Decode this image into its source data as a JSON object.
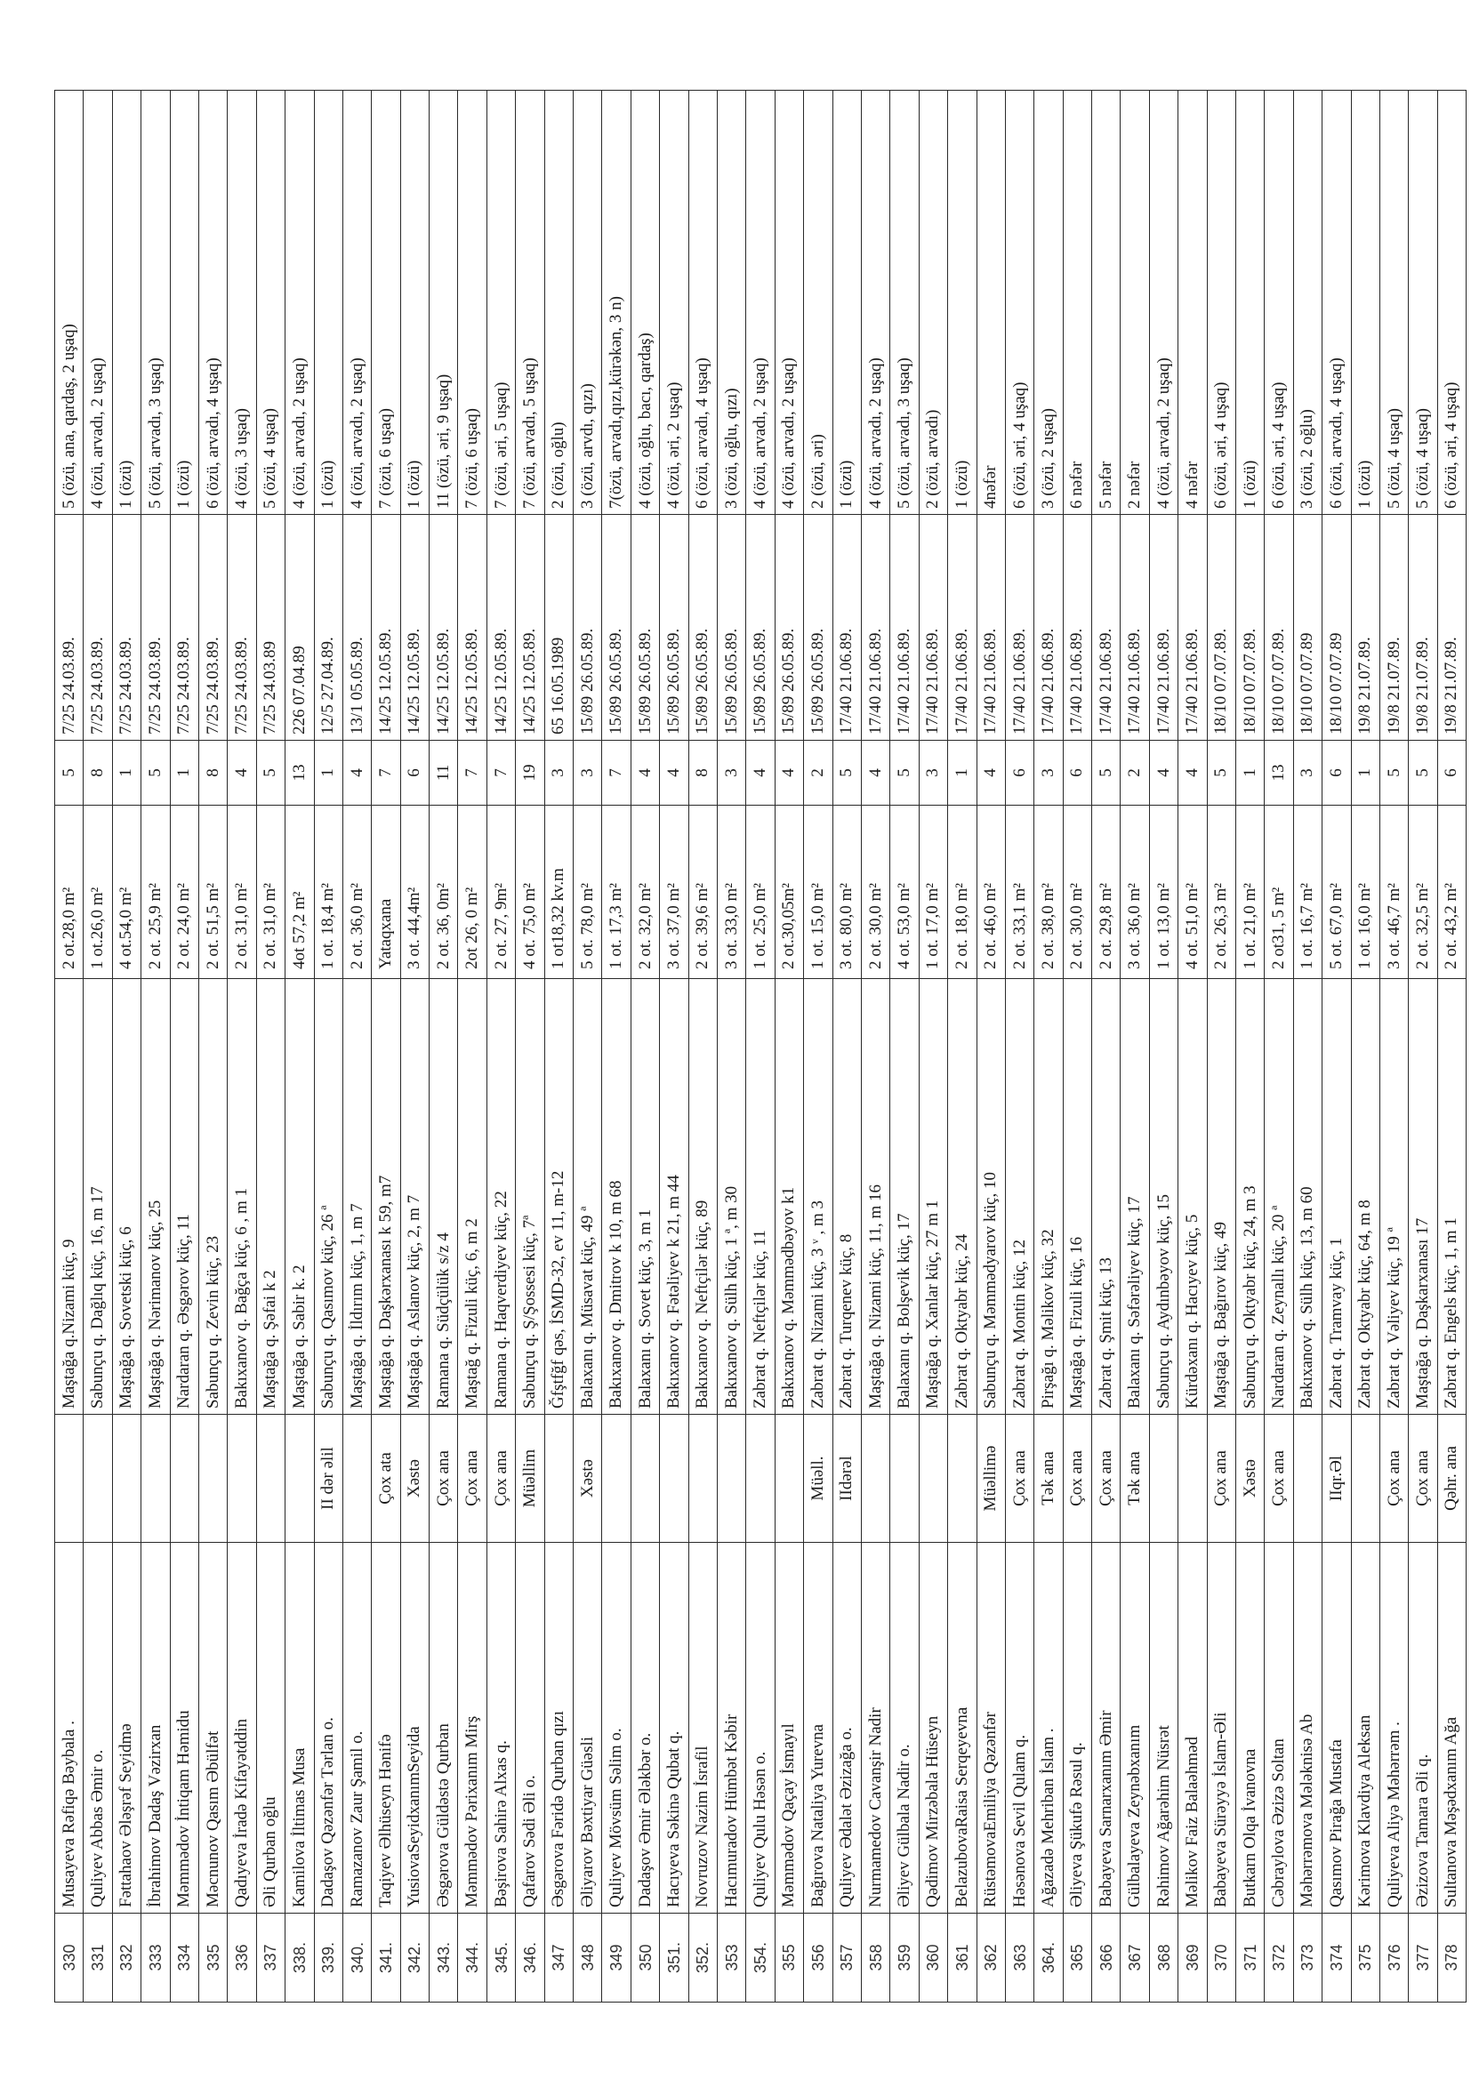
{
  "rows": [
    {
      "no": "330",
      "name": "Musayeva Rəfiqə Bəybala .",
      "status": "",
      "address": "Maştağa q.Nizami küç, 9",
      "area": "2 ot.28,0 m²",
      "count": "5",
      "decision": "7/25  24.03.89.",
      "family": "5 (özü, ana, qardaş, 2 uşaq)"
    },
    {
      "no": "331",
      "name": "Quliyev Abbas Əmir o.",
      "status": "",
      "address": "Sabunçu q. Dağlıq küç, 16, m 17",
      "area": "1 ot.26,0 m²",
      "count": "8",
      "decision": "7/25  24.03.89.",
      "family": "4 (özü, arvadı, 2 uşaq)"
    },
    {
      "no": "332",
      "name": "Fəttahaov Ələşrəf Seyidmə",
      "status": "",
      "address": "Maştağa q. Sovetski küç, 6",
      "area": "4 ot.54,0 m²",
      "count": "1",
      "decision": "7/25  24.03.89.",
      "family": "1 (özü)"
    },
    {
      "no": "333",
      "name": "İbrahimov Dadaş Vəzirxan",
      "status": "",
      "address": "Maştağa q. Nərimanov küç, 25",
      "area": "2 ot. 25,9 m²",
      "count": "5",
      "decision": "7/25  24.03.89.",
      "family": "5 (özü, arvadı, 3 uşaq)"
    },
    {
      "no": "334",
      "name": "Məmmədov İntiqam Həmidu",
      "status": "",
      "address": "Nardaran q. Əsgərov küç, 11",
      "area": "2 ot. 24,0 m²",
      "count": "1",
      "decision": "7/25  24.03.89.",
      "family": "1 (özü)"
    },
    {
      "no": "335",
      "name": "Məcnunov Qasım Əbülfət",
      "status": "",
      "address": "Sabunçu q. Zevin küç, 23",
      "area": "2 ot. 51,5 m²",
      "count": "8",
      "decision": "7/25  24.03.89.",
      "family": "6 (özü, arvadı, 4 uşaq)"
    },
    {
      "no": "336",
      "name": "Qadıyeva İradə Kifayətddin",
      "status": "",
      "address": "Bakıxanov q. Bağça küç, 6 , m 1",
      "area": "2 ot. 31,0 m²",
      "count": "4",
      "decision": "7/25  24.03.89.",
      "family": "4 (özü, 3 uşaq)"
    },
    {
      "no": "337",
      "name": "Əli Qurban oğlu",
      "status": "",
      "address": "Maştağa q. Şəfai k 2",
      "area": "2 ot. 31,0 m²",
      "count": "5",
      "decision": "7/25 24.03.89",
      "family": "5 (özü,  4 uşaq)"
    },
    {
      "no": "338.",
      "name": "Kamilova İltimas Musa",
      "status": "",
      "address": "Maştağa q. Sabir k. 2",
      "area": "4ot 57,2 m²",
      "count": "13",
      "decision": "   226 07.04.89",
      "family": "4 (özü, arvadı, 2 uşaq)"
    },
    {
      "no": "339.",
      "name": "Dadaşov Qəzənfər Tərlan o.",
      "status": "II dər əlil",
      "address": "Sabunçu q. Qasımov küç, 26 ª",
      "area": "1 ot. 18,4 m²",
      "count": "1",
      "decision": "12/5  27.04.89.",
      "family": "1 (özü)"
    },
    {
      "no": "340.",
      "name": "Ramazanov Zaur Şamil o.",
      "status": "",
      "address": "Maştağa q. İldırım küç, 1, m 7",
      "area": "2 ot. 36,0 m²",
      "count": "4",
      "decision": "13/1  05.05.89.",
      "family": "4 (özü, arvadı, 2 uşaq)"
    },
    {
      "no": "341.",
      "name": "Taqiyev Əlhüseyn Hənifə",
      "status": "Çox ata",
      "address": "Maştağa q. Daşkərxanası k 59, m7",
      "area": "Yataqxana",
      "count": "7",
      "decision": "14/25  12.05.89.",
      "family": "7 (özü, 6 uşaq)"
    },
    {
      "no": "342.",
      "name": "YusiovaSeyidxanımSeyida",
      "status": "Xəstə",
      "address": "Maştağa q. Aslanov küç, 2, m 7",
      "area": "3 ot. 44,4m²",
      "count": "6",
      "decision": "14/25  12.05.89.",
      "family": "1 (özü)"
    },
    {
      "no": "343.",
      "name": "Əsgərova Güldəstə Qurban",
      "status": "Çox ana",
      "address": "Ramana q. Südçülük s/z 4",
      "area": "2 ot. 36, 0m²",
      "count": "11",
      "decision": "14/25  12.05.89.",
      "family": "11 (özü, əri, 9 uşaq)"
    },
    {
      "no": "344.",
      "name": "Məmmədov Pərixanım Mirş",
      "status": "Çox ana",
      "address": "Maştağ q. Fizuli küç, 6, m 2",
      "area": "2ot 26, 0 m²",
      "count": "7",
      "decision": "14/25  12.05.89.",
      "family": "7 (özü, 6 uşaq)"
    },
    {
      "no": "345.",
      "name": "Bəşirova Sahirə Alxas q.",
      "status": "Çox ana",
      "address": "Ramana q. Haqverdiyev küç, 22",
      "area": "2 ot. 27, 9m²",
      "count": "7",
      "decision": "14/25  12.05.89.",
      "family": "7 (özü, əri, 5 uşaq)"
    },
    {
      "no": "346.",
      "name": "Qafarov Sədi Əli o.",
      "status": "Müəllim",
      "address": "Sabunçu q. Ş/Şossesi küç, 7ª",
      "area": "4 ot. 75,0 m²",
      "count": "19",
      "decision": "14/25  12.05.89.",
      "family": "7 (özü, arvadı, 5 uşaq)"
    },
    {
      "no": "347",
      "name": "Əsgərova Fəridə Qurban qızı",
      "status": "",
      "address": "Ğfştfğf qəs, İSMD-32, ev 11, m-12",
      "area": "1 ot18,32 kv.m",
      "count": "3",
      "decision": "65  16.05.1989",
      "family": "2 (özü, oğlu)"
    },
    {
      "no": "348",
      "name": "Əliyarov Bəxtiyar Güəsli",
      "status": "Xəstə",
      "address": "Balaxanı q. Müsavat küç, 49 ª",
      "area": "5 ot. 78,0 m²",
      "count": "3",
      "decision": "15/89  26.05.89.",
      "family": "3 (özü, arvdı, qızı)"
    },
    {
      "no": "349",
      "name": "Quliyev Mövsüm Səlim o.",
      "status": "",
      "address": "Bakıxanov q. Dmitrov k 10, m 68",
      "area": "1 ot. 17,3 m²",
      "count": "7",
      "decision": "15/89  26.05.89.",
      "family": "7(özü, arvadı,qızı,kürəkən, 3 n)"
    },
    {
      "no": "350",
      "name": "Dadaşov Əmir Ələkbər o.",
      "status": "",
      "address": "Balaxanı q. Sovet küç, 3, m 1",
      "area": "2 ot. 32,0 m²",
      "count": "4",
      "decision": "15/89  26.05.89.",
      "family": "4 (özü, oğlu, bacı, qardaş)"
    },
    {
      "no": "351.",
      "name": "Hacıyeva Səkinə Qubat q.",
      "status": "",
      "address": "Bakıxanov q. Fətəliyev k 21, m 44",
      "area": "3 ot. 37,0 m²",
      "count": "4",
      "decision": "15/89  26.05.89.",
      "family": "4 (özü, əri, 2 uşaq)"
    },
    {
      "no": "352.",
      "name": "Novruzov Nazim İsrafil",
      "status": "",
      "address": "Bakıxanov q. Neftçilər küç, 89",
      "area": "2 ot. 39,6 m²",
      "count": "8",
      "decision": "15/89  26.05.89.",
      "family": "6 (özü, arvadı, 4 uşaq)"
    },
    {
      "no": "353",
      "name": "Hacımuradov Hümbət Kəbir",
      "status": "",
      "address": "Bakıxanov q. Sülh küç, 1 ª, m 30",
      "area": "3 ot. 33,0 m²",
      "count": "3",
      "decision": "15/89  26.05.89.",
      "family": "3 (özü, oğlu, qızı)"
    },
    {
      "no": "354.",
      "name": "Quliyev Qulu Həsən o.",
      "status": "",
      "address": "Zabrat q. Neftçilər küç, 11",
      "area": "1 ot. 25,0 m²",
      "count": "4",
      "decision": "15/89  26.05.89.",
      "family": "4 (özü, arvadı, 2 uşaq)"
    },
    {
      "no": "355",
      "name": "Məmmədov Qaçay İsmayıl",
      "status": "",
      "address": "Bakıxanov q. Məmmədbəyov k1",
      "area": "2 ot.30,05m²",
      "count": "4",
      "decision": "15/89  26.05.89.",
      "family": "4 (özü, arvadı, 2 uşaq)"
    },
    {
      "no": "356",
      "name": "Bağırova Nataliya Yurevna",
      "status": "Müəll.",
      "address": "Zabrat q. Nizami küç, 3 ᵛ , m 3",
      "area": "1 ot. 15,0 m²",
      "count": "2",
      "decision": "15/89  26.05.89.",
      "family": "2 (özü, əri)"
    },
    {
      "no": "357",
      "name": "Quliyev Ədalət Əzizağa o.",
      "status": "IIdərəl",
      "address": "Zabrat q. Turqenev küç, 8",
      "area": "3 ot. 80,0 m²",
      "count": "5",
      "decision": "17/40  21.06.89.",
      "family": "1 (özü)"
    },
    {
      "no": "358",
      "name": "Nurmamedov Cavanşir Nadir",
      "status": "",
      "address": "Maştağa q. Nizami küç, 11, m 16",
      "area": "2 ot. 30,0 m²",
      "count": "4",
      "decision": "17/40  21.06.89.",
      "family": "4 (özü, arvadı, 2 uşaq)"
    },
    {
      "no": "359",
      "name": "Əliyev Gülbala Nadir o.",
      "status": "",
      "address": "Balaxanı q. Bolşevik küç, 17",
      "area": "4 ot. 53,0 m²",
      "count": "5",
      "decision": "17/40  21.06.89.",
      "family": "5 (özü, arvadı, 3 uşaq)"
    },
    {
      "no": "360",
      "name": "Qədimov Mirzəbala Hüseyn",
      "status": "",
      "address": "Maştağa q. Xanlar küç, 27 m 1",
      "area": "1 ot. 17,0 m²",
      "count": "3",
      "decision": "17/40  21.06.89.",
      "family": "2 (özü, arvadı)"
    },
    {
      "no": "361",
      "name": "BelazubovaRaisa Serqeyevna",
      "status": "",
      "address": "Zabrat q. Oktyabr küç, 24",
      "area": "2 ot. 18,0 m²",
      "count": "1",
      "decision": "17/40  21.06.89.",
      "family": "1 (özü)"
    },
    {
      "no": "362",
      "name": "RüstəmovaEmiliya Qəzənfər",
      "status": "Müəllimə",
      "address": "Sabunçu q. Məmmədyarov küç, 10",
      "area": "2 ot. 46,0 m²",
      "count": "4",
      "decision": "17/40  21.06.89.",
      "family": "4nəfər"
    },
    {
      "no": "363",
      "name": "Həsənova Sevil Qulam q.",
      "status": "Çox ana",
      "address": "Zabrat q. Montin küç, 12",
      "area": "2 ot. 33,1 m²",
      "count": "6",
      "decision": "17/40  21.06.89.",
      "family": "6 (özü, əri, 4 uşaq)"
    },
    {
      "no": "364.",
      "name": "Ağazadə Mehriban İslam .",
      "status": "Tək ana",
      "address": "Pirşağı q. Məlikov küç, 32",
      "area": "2 ot. 38,0 m²",
      "count": "3",
      "decision": "17/40  21.06.89.",
      "family": "3 (özü, 2 uşaq)"
    },
    {
      "no": "365",
      "name": "Əliyeva Şükufə Rəsul q.",
      "status": "Çox ana",
      "address": "Maştağa q. Fizuli küç, 16",
      "area": "2 ot. 30,0 m²",
      "count": "6",
      "decision": "17/40  21.06.89.",
      "family": "6 nəfər"
    },
    {
      "no": "366",
      "name": "Babayeva Sarnarxanım Əmir",
      "status": "Çox ana",
      "address": "Zabrat q. Şmit küç, 13",
      "area": "2 ot. 29,8 m²",
      "count": "5",
      "decision": "17/40  21.06.89.",
      "family": "5 nəfər"
    },
    {
      "no": "367",
      "name": "Gülbalayeva Zeynəbxanım",
      "status": "Tək ana",
      "address": "Balaxanı q. Səfərəliyev küç, 17",
      "area": "3 ot. 36,0 m²",
      "count": "2",
      "decision": "17/40  21.06.89.",
      "family": "2 nəfər"
    },
    {
      "no": "368",
      "name": "Rəhimov Ağarəhim Nüsrət",
      "status": "",
      "address": "Sabunçu q. Aydınbəyov küç, 15",
      "area": "1 ot. 13,0 m²",
      "count": "4",
      "decision": "17/40  21.06.89.",
      "family": "4 (özü, arvadı, 2 uşaq)"
    },
    {
      "no": "369",
      "name": "Məlikov Faiz Balaəhməd",
      "status": "",
      "address": "Kürdəxanı q. Hacıyev küç, 5",
      "area": "4 ot. 51,0 m²",
      "count": "4",
      "decision": "17/40  21.06.89.",
      "family": "4 nəfər"
    },
    {
      "no": "370",
      "name": "Babayeva Sürəyyə İslam-Əli",
      "status": "Çox ana",
      "address": "Maştağa q. Bağırov küç, 49",
      "area": "2 ot. 26,3 m²",
      "count": "5",
      "decision": "18/10  07.07.89.",
      "family": "6 (özü, əri, 4 uşaq)"
    },
    {
      "no": "371",
      "name": "Butkarn Olqa İvanovna",
      "status": "Xəstə",
      "address": "Sabunçu q. Oktyabr küç, 24, m 3",
      "area": "1 ot. 21,0 m²",
      "count": "1",
      "decision": "18/10  07.07.89.",
      "family": "1 (özü)"
    },
    {
      "no": "372",
      "name": "Cəbraylova Əzizə Soltan",
      "status": "Çox ana",
      "address": "Nardaran q. Zeynallı küç, 20 ª",
      "area": "2 ot31, 5 m²",
      "count": "13",
      "decision": "18/10  07.07.89.",
      "family": "6 (özü, əri, 4 uşaq)"
    },
    {
      "no": "373",
      "name": "Məhərrəmova Mələknisə Ab",
      "status": "",
      "address": "Bakıxanov q. Sülh küç, 13, m 60",
      "area": "1 ot. 16,7 m²",
      "count": "3",
      "decision": "18/10  07.07.89",
      "family": "3 (özü, 2 oğlu)"
    },
    {
      "no": "374",
      "name": "Qasımov Pirağa Mustafa",
      "status": "IIqr.Əl",
      "address": "Zabrat q. Tramvay küç, 1",
      "area": "5 ot. 67,0 m²",
      "count": "6",
      "decision": "18/10  07.07.89",
      "family": "6 (özü, arvadı, 4 uşaq)"
    },
    {
      "no": "375",
      "name": "Kərimova Klavdiya Aleksan",
      "status": "",
      "address": "Zabrat q. Oktyabr küç, 64, m 8",
      "area": "1 ot. 16,0 m²",
      "count": "1",
      "decision": "19/8  21.07.89.",
      "family": "1 (özü)"
    },
    {
      "no": "376",
      "name": "Quliyeva Aliyə Məhərrəm .",
      "status": "Çox ana",
      "address": "Zabrat q. Vəliyev küç, 19 ª",
      "area": "3 ot. 46,7 m²",
      "count": "5",
      "decision": "19/8  21.07.89.",
      "family": "5 (özü, 4 uşaq)"
    },
    {
      "no": "377",
      "name": "Əzizova Tamara Əli q.",
      "status": "Çox ana",
      "address": "Maştağa q. Daşkarxanası 17",
      "area": "2 ot. 32,5 m²",
      "count": "5",
      "decision": "19/8  21.07.89.",
      "family": "5 (özü, 4 uşaq)"
    },
    {
      "no": "378",
      "name": "Sultanova Məşədxanım Ağa",
      "status": "Qəhr. ana",
      "address": "Zabrat q. Engels küç, 1, m 1",
      "area": "2 ot. 43,2 m²",
      "count": "6",
      "decision": "19/8  21.07.89.",
      "family": "6 (özü, əri, 4 uşaq)"
    }
  ]
}
